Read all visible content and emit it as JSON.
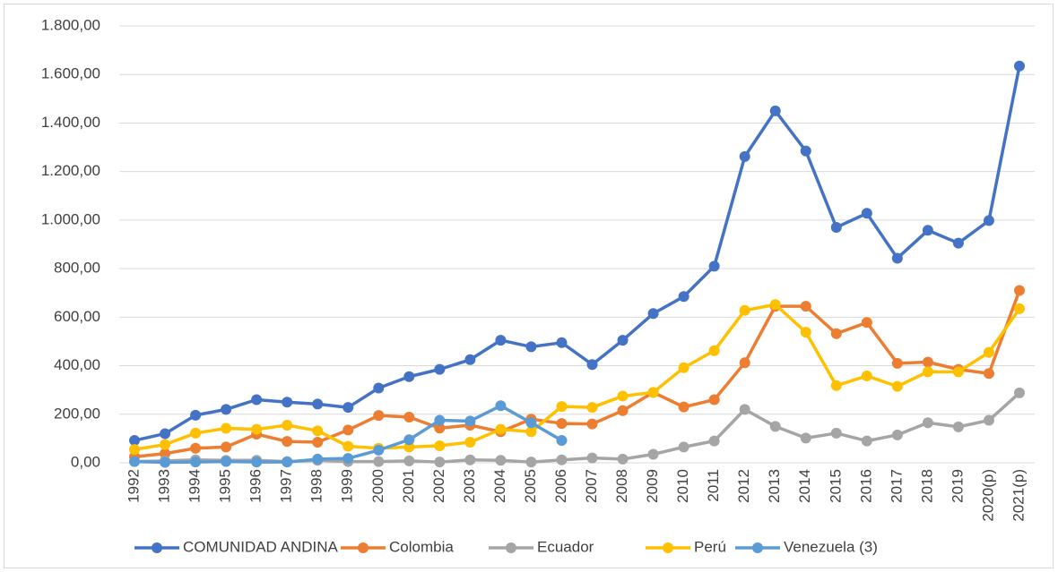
{
  "chart_data": {
    "type": "line",
    "categories": [
      "1992",
      "1993",
      "1994",
      "1995",
      "1996",
      "1997",
      "1998",
      "1999",
      "2000",
      "2001",
      "2002",
      "2003",
      "2004",
      "2005",
      "2006",
      "2007",
      "2008",
      "2009",
      "2010",
      "2011",
      "2012",
      "2013",
      "2014",
      "2015",
      "2016",
      "2017",
      "2018",
      "2019",
      "2020(p)",
      "2021(p)"
    ],
    "series": [
      {
        "name": "COMUNIDAD ANDINA",
        "color": "#4472c4",
        "values": [
          92,
          120,
          196,
          220,
          260,
          250,
          242,
          228,
          308,
          355,
          385,
          425,
          505,
          478,
          495,
          405,
          505,
          615,
          685,
          810,
          1262,
          1450,
          1285,
          970,
          1028,
          843,
          958,
          905,
          998,
          1635
        ]
      },
      {
        "name": "Colombia",
        "color": "#ed7d31",
        "values": [
          25,
          38,
          60,
          65,
          118,
          88,
          85,
          135,
          195,
          188,
          143,
          155,
          128,
          180,
          162,
          160,
          215,
          290,
          230,
          260,
          412,
          645,
          645,
          532,
          578,
          410,
          415,
          385,
          368,
          710
        ]
      },
      {
        "name": "Ecuador",
        "color": "#a5a5a5",
        "values": [
          5,
          8,
          12,
          10,
          10,
          5,
          10,
          5,
          5,
          8,
          3,
          12,
          10,
          3,
          12,
          20,
          15,
          35,
          65,
          90,
          220,
          150,
          102,
          122,
          90,
          115,
          165,
          148,
          175,
          288
        ]
      },
      {
        "name": "Perú",
        "color": "#ffc000",
        "values": [
          55,
          75,
          122,
          142,
          138,
          155,
          132,
          68,
          60,
          65,
          70,
          85,
          138,
          128,
          232,
          228,
          275,
          290,
          392,
          462,
          628,
          652,
          538,
          318,
          358,
          315,
          375,
          375,
          455,
          635
        ]
      },
      {
        "name": "Venezuela (3)",
        "color": "#5b9bd5",
        "values": [
          5,
          2,
          3,
          5,
          3,
          3,
          15,
          18,
          52,
          95,
          175,
          172,
          235,
          165,
          92,
          null,
          null,
          null,
          null,
          null,
          null,
          null,
          null,
          null,
          null,
          null,
          null,
          null,
          null,
          null
        ]
      }
    ],
    "ylim": [
      0,
      1800
    ],
    "yticks": [
      {
        "value": 0,
        "label": "0,00"
      },
      {
        "value": 200,
        "label": "200,00"
      },
      {
        "value": 400,
        "label": "400,00"
      },
      {
        "value": 600,
        "label": "600,00"
      },
      {
        "value": 800,
        "label": "800,00"
      },
      {
        "value": 1000,
        "label": "1.000,00"
      },
      {
        "value": 1200,
        "label": "1.200,00"
      },
      {
        "value": 1400,
        "label": "1.400,00"
      },
      {
        "value": 1600,
        "label": "1.600,00"
      },
      {
        "value": 1800,
        "label": "1.800,00"
      }
    ],
    "grid": true,
    "legend": "bottom"
  }
}
